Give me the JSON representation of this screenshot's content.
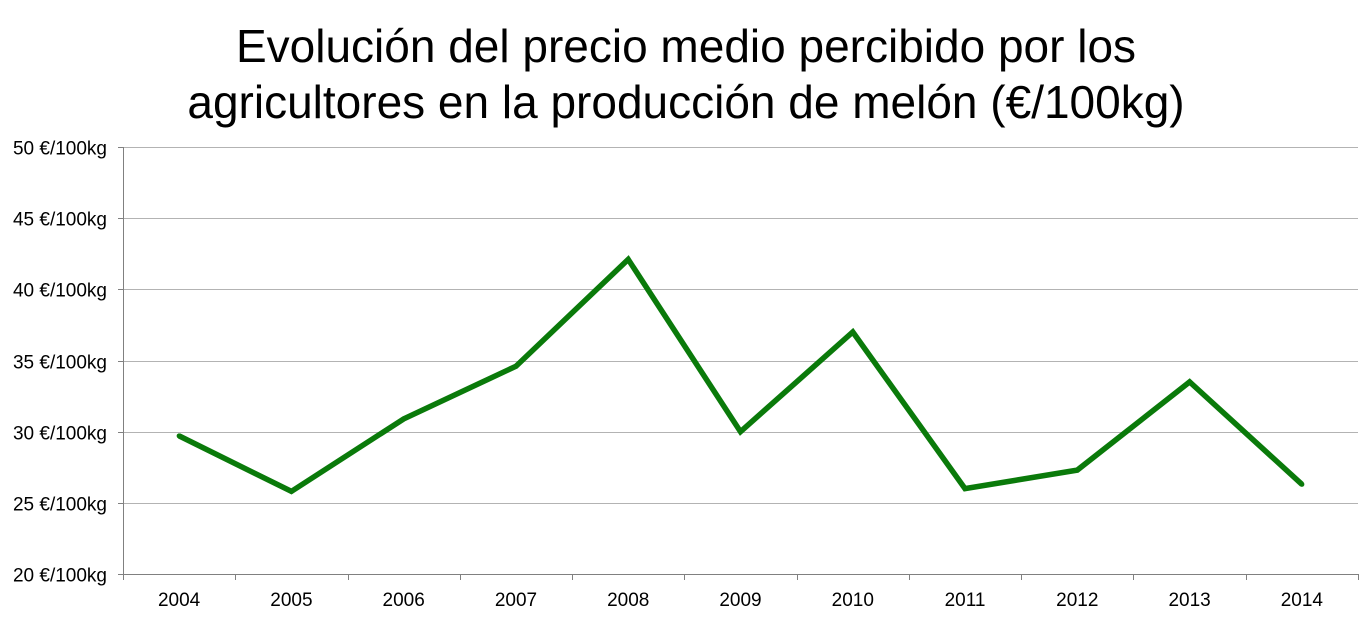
{
  "chart_data": {
    "type": "line",
    "title_lines": [
      "Evolución del precio medio percibido por los",
      "agricultores en la producción de melón (€/100kg)"
    ],
    "xlabel": "",
    "ylabel": "",
    "categories": [
      "2004",
      "2005",
      "2006",
      "2007",
      "2008",
      "2009",
      "2010",
      "2011",
      "2012",
      "2013",
      "2014"
    ],
    "series": [
      {
        "values": [
          29.7,
          25.8,
          30.9,
          34.6,
          42.1,
          30.0,
          37.0,
          26.0,
          27.3,
          33.5,
          26.3
        ],
        "color": "#0a7a0a"
      }
    ],
    "ylim": [
      20,
      50
    ],
    "yticks": [
      20,
      25,
      30,
      35,
      40,
      45,
      50
    ],
    "ytick_labels": [
      "20 €/100kg",
      "25 €/100kg",
      "30 €/100kg",
      "35 €/100kg",
      "40 €/100kg",
      "45 €/100kg",
      "50 €/100kg"
    ],
    "grid": true,
    "legend": "none",
    "gridline_color": "#b3b3b3"
  }
}
